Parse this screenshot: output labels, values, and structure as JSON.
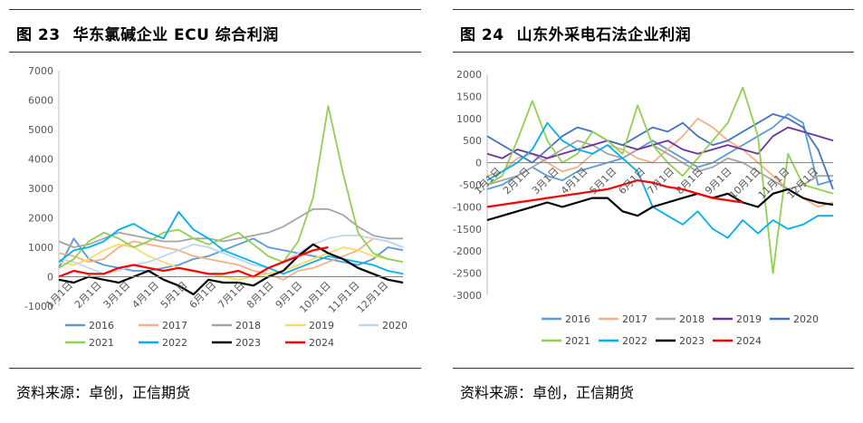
{
  "chart_data": [
    {
      "type": "line",
      "title": "图 23 华东氯碱企业 ECU 综合利润",
      "title_num": "图 23",
      "title_text": "华东氯碱企业 ECU 综合利润",
      "source": "资料来源：卓创，正信期货",
      "ylim": [
        -1000,
        7000
      ],
      "yticks": [
        7000,
        6000,
        5000,
        4000,
        3000,
        2000,
        1000,
        0,
        -1000
      ],
      "xlabels": [
        "1月1日",
        "2月1日",
        "3月1日",
        "4月1日",
        "5月1日",
        "6月1日",
        "7月1日",
        "8月1日",
        "9月1日",
        "10月1日",
        "11月1日",
        "12月1日"
      ],
      "legend_placement": "bottom",
      "series": [
        {
          "name": "2016",
          "color": "#5b9bd5",
          "values": [
            300,
            1300,
            600,
            400,
            300,
            200,
            200,
            300,
            400,
            600,
            700,
            900,
            1100,
            1300,
            1000,
            900,
            800,
            700,
            600,
            500,
            400,
            600,
            1000,
            900
          ]
        },
        {
          "name": "2017",
          "color": "#f4b183",
          "values": [
            800,
            700,
            500,
            600,
            1000,
            1200,
            1100,
            1000,
            900,
            700,
            600,
            500,
            400,
            200,
            100,
            -100,
            200,
            300,
            500,
            700,
            900,
            1300,
            1200,
            1000
          ]
        },
        {
          "name": "2018",
          "color": "#a5a5a5",
          "values": [
            1200,
            1000,
            1100,
            1300,
            1500,
            1400,
            1300,
            1200,
            1200,
            1300,
            1300,
            1200,
            1300,
            1400,
            1500,
            1700,
            2000,
            2300,
            2300,
            2100,
            1700,
            1400,
            1300,
            1300
          ]
        },
        {
          "name": "2019",
          "color": "#ffd966",
          "values": [
            500,
            400,
            600,
            900,
            1100,
            1000,
            700,
            500,
            300,
            200,
            100,
            0,
            -100,
            0,
            100,
            200,
            400,
            600,
            800,
            1000,
            900,
            700,
            600,
            500
          ]
        },
        {
          "name": "2020",
          "color": "#bdd7ee",
          "values": [
            600,
            500,
            300,
            100,
            200,
            400,
            500,
            700,
            900,
            1100,
            1000,
            800,
            600,
            400,
            300,
            500,
            800,
            1100,
            1300,
            1400,
            1400,
            1300,
            1200,
            1000
          ]
        },
        {
          "name": "2021",
          "color": "#92d050",
          "values": [
            300,
            600,
            1200,
            1500,
            1300,
            1000,
            1200,
            1500,
            1600,
            1300,
            1100,
            1300,
            1500,
            1100,
            700,
            500,
            1200,
            2700,
            5800,
            3500,
            1500,
            800,
            600,
            500
          ]
        },
        {
          "name": "2022",
          "color": "#00b0f0",
          "values": [
            500,
            900,
            1000,
            1200,
            1600,
            1800,
            1500,
            1300,
            2200,
            1600,
            1300,
            900,
            700,
            500,
            300,
            100,
            300,
            500,
            700,
            600,
            500,
            400,
            200,
            100
          ]
        },
        {
          "name": "2023",
          "color": "#000000",
          "values": [
            -100,
            -200,
            0,
            -100,
            -200,
            0,
            200,
            -100,
            -300,
            -600,
            -100,
            -200,
            -200,
            -300,
            0,
            200,
            700,
            1100,
            800,
            600,
            300,
            100,
            -100,
            -200
          ]
        },
        {
          "name": "2024",
          "color": "#ff0000",
          "values": [
            0,
            200,
            100,
            100,
            300,
            400,
            300,
            200,
            300,
            200,
            100,
            100,
            200,
            0,
            300,
            500,
            700,
            900,
            1000
          ]
        }
      ]
    },
    {
      "type": "line",
      "title": "图 24 山东外采电石法企业利润",
      "title_num": "图 24",
      "title_text": "山东外采电石法企业利润",
      "source": "资料来源：卓创，正信期货",
      "ylim": [
        -3000,
        2000
      ],
      "yticks": [
        2000,
        1500,
        1000,
        500,
        0,
        -500,
        -1000,
        -1500,
        -2000,
        -2500,
        -3000
      ],
      "xlabels": [
        "1月1日",
        "2月1日",
        "3月1日",
        "4月1日",
        "5月1日",
        "6月1日",
        "7月1日",
        "8月1日",
        "9月1日",
        "10月1日",
        "11月1日",
        "12月1日"
      ],
      "legend_placement": "bottom",
      "series": [
        {
          "name": "2016",
          "color": "#5b9bd5",
          "values": [
            -600,
            -500,
            -300,
            -100,
            -300,
            -400,
            -200,
            -100,
            0,
            100,
            300,
            500,
            300,
            100,
            -100,
            0,
            200,
            400,
            600,
            800,
            1100,
            900,
            -500,
            -400
          ]
        },
        {
          "name": "2017",
          "color": "#f4b183",
          "values": [
            -300,
            -200,
            100,
            200,
            0,
            -200,
            -100,
            200,
            400,
            300,
            100,
            0,
            300,
            600,
            1000,
            800,
            500,
            300,
            0,
            -300,
            -600,
            -800,
            -1000,
            -900
          ]
        },
        {
          "name": "2018",
          "color": "#a5a5a5",
          "values": [
            -500,
            -400,
            -300,
            -100,
            100,
            300,
            500,
            400,
            200,
            100,
            300,
            400,
            200,
            0,
            -200,
            -100,
            100,
            0,
            -200,
            -400,
            -600,
            -500,
            -300,
            -300
          ]
        },
        {
          "name": "2019",
          "color": "#7030a0",
          "values": [
            200,
            100,
            300,
            200,
            100,
            200,
            300,
            400,
            500,
            400,
            300,
            400,
            500,
            300,
            200,
            300,
            400,
            300,
            200,
            600,
            800,
            700,
            600,
            500
          ]
        },
        {
          "name": "2020",
          "color": "#4472c4",
          "values": [
            600,
            400,
            200,
            0,
            300,
            600,
            800,
            700,
            500,
            400,
            600,
            800,
            700,
            900,
            600,
            400,
            500,
            700,
            900,
            1100,
            1000,
            800,
            300,
            -600
          ]
        },
        {
          "name": "2021",
          "color": "#92d050",
          "values": [
            -500,
            -300,
            500,
            1400,
            500,
            0,
            200,
            700,
            500,
            200,
            1300,
            400,
            0,
            -300,
            100,
            500,
            900,
            1700,
            600,
            -2500,
            200,
            -500,
            -600,
            -700
          ]
        },
        {
          "name": "2022",
          "color": "#00b0f0",
          "values": [
            -400,
            -200,
            0,
            300,
            900,
            500,
            300,
            200,
            400,
            100,
            -200,
            -1000,
            -1200,
            -1400,
            -1100,
            -1500,
            -1700,
            -1300,
            -1600,
            -1300,
            -1500,
            -1400,
            -1200,
            -1200
          ]
        },
        {
          "name": "2023",
          "color": "#000000",
          "values": [
            -1300,
            -1200,
            -1100,
            -1000,
            -900,
            -1000,
            -900,
            -800,
            -800,
            -1100,
            -1200,
            -1000,
            -900,
            -800,
            -700,
            -800,
            -700,
            -900,
            -1000,
            -700,
            -600,
            -800,
            -900,
            -950
          ]
        },
        {
          "name": "2024",
          "color": "#ff0000",
          "values": [
            -1000,
            -950,
            -900,
            -850,
            -800,
            -750,
            -700,
            -650,
            -600,
            -500,
            -400,
            -450,
            -550,
            -600,
            -700,
            -800,
            -850,
            -900
          ]
        }
      ]
    }
  ]
}
